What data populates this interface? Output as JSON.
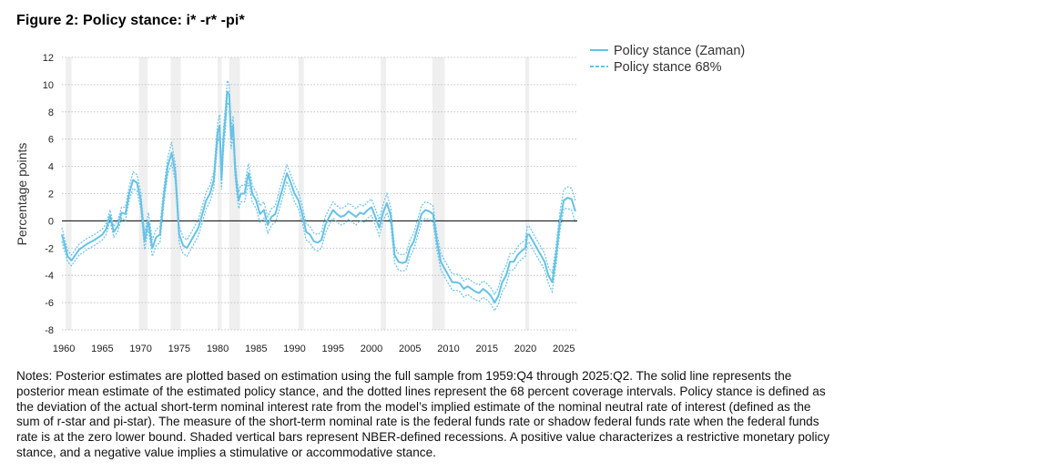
{
  "title": "Figure 2: Policy stance: i* -r* -pi*",
  "notes": "Notes: Posterior estimates are plotted based on estimation using the full sample from 1959:Q4 through 2025:Q2. The solid line represents the posterior mean estimate of the estimated policy stance, and the dotted lines represent the 68 percent coverage intervals. Policy stance is defined as the deviation of the actual short-term nominal interest rate from the model’s implied estimate of the nominal neutral rate of interest (defined as the sum of r-star and pi-star). The measure of the short-term nominal rate is the federal funds rate or shadow federal funds rate when the federal funds rate is at the zero lower bound. Shaded vertical bars represent NBER-defined recessions. A positive value characterizes a restrictive monetary policy stance, and a negative value implies a stimulative or accommodative stance.",
  "colors": {
    "line": "#66c2e6",
    "band": "#66c2e6",
    "recession": "#efefef",
    "zero_line": "#000000",
    "grid": "#b5b5b5"
  },
  "chart_data": {
    "type": "line",
    "title": "Figure 2: Policy stance: i* -r* -pi*",
    "ylabel": "Percentage points",
    "xlabel": "",
    "xlim": [
      1959.75,
      2026.75
    ],
    "ylim": [
      -8,
      12
    ],
    "x_ticks": [
      1960,
      1965,
      1970,
      1975,
      1980,
      1985,
      1990,
      1995,
      2000,
      2005,
      2010,
      2015,
      2020,
      2025
    ],
    "y_ticks": [
      -8,
      -6,
      -4,
      -2,
      0,
      2,
      4,
      6,
      8,
      10,
      12
    ],
    "grid": "horizontal dotted",
    "legend_position": "top-right, outside plot",
    "legend": [
      "Policy stance (Zaman)",
      "Policy stance 68%"
    ],
    "recessions": [
      [
        1960.25,
        1961.0
      ],
      [
        1969.75,
        1970.9
      ],
      [
        1973.9,
        1975.2
      ],
      [
        1980.0,
        1980.5
      ],
      [
        1981.5,
        1982.9
      ],
      [
        1990.5,
        1991.2
      ],
      [
        2001.2,
        2001.9
      ],
      [
        2007.9,
        2009.5
      ],
      [
        2020.0,
        2020.5
      ]
    ],
    "series": [
      {
        "name": "Policy stance (Zaman)",
        "style": "solid",
        "x": [
          1959.75,
          1960.5,
          1961.0,
          1961.5,
          1962.0,
          1963.0,
          1964.0,
          1965.0,
          1965.5,
          1966.0,
          1966.5,
          1967.0,
          1967.5,
          1968.0,
          1968.5,
          1969.0,
          1969.5,
          1970.0,
          1970.5,
          1971.0,
          1971.5,
          1972.0,
          1972.5,
          1973.0,
          1973.5,
          1974.0,
          1974.5,
          1975.0,
          1975.5,
          1976.0,
          1976.5,
          1977.0,
          1977.5,
          1978.0,
          1978.5,
          1979.0,
          1979.5,
          1980.0,
          1980.25,
          1980.5,
          1980.75,
          1981.0,
          1981.25,
          1981.5,
          1981.75,
          1982.0,
          1982.25,
          1982.5,
          1982.75,
          1983.0,
          1983.5,
          1984.0,
          1984.5,
          1985.0,
          1985.5,
          1986.0,
          1986.5,
          1987.0,
          1987.5,
          1988.0,
          1988.5,
          1989.0,
          1989.5,
          1990.0,
          1990.5,
          1991.0,
          1991.5,
          1992.0,
          1992.5,
          1993.0,
          1993.5,
          1994.0,
          1994.5,
          1995.0,
          1995.5,
          1996.0,
          1996.5,
          1997.0,
          1997.5,
          1998.0,
          1998.5,
          1999.0,
          1999.5,
          2000.0,
          2000.5,
          2001.0,
          2001.5,
          2002.0,
          2002.5,
          2003.0,
          2003.5,
          2004.0,
          2004.5,
          2005.0,
          2005.5,
          2006.0,
          2006.5,
          2007.0,
          2007.5,
          2008.0,
          2008.5,
          2009.0,
          2009.5,
          2010.0,
          2010.5,
          2011.0,
          2011.5,
          2012.0,
          2012.5,
          2013.0,
          2013.5,
          2014.0,
          2014.5,
          2015.0,
          2015.5,
          2016.0,
          2016.5,
          2017.0,
          2017.5,
          2018.0,
          2018.5,
          2019.0,
          2019.5,
          2020.0,
          2020.25,
          2020.5,
          2021.0,
          2021.5,
          2022.0,
          2022.5,
          2023.0,
          2023.5,
          2024.0,
          2024.5,
          2025.0,
          2025.5,
          2026.0,
          2026.5
        ],
        "y": [
          -1.0,
          -2.6,
          -2.9,
          -2.5,
          -2.1,
          -1.7,
          -1.4,
          -1.0,
          -0.6,
          0.4,
          -0.8,
          -0.4,
          0.6,
          0.5,
          2.0,
          3.0,
          2.8,
          1.5,
          -1.5,
          0.0,
          -2.0,
          -1.2,
          -1.0,
          1.8,
          4.0,
          5.0,
          3.5,
          -1.0,
          -1.8,
          -2.0,
          -1.5,
          -1.0,
          -0.5,
          0.5,
          1.5,
          2.0,
          3.0,
          6.5,
          7.0,
          3.0,
          6.0,
          7.5,
          9.5,
          9.3,
          6.0,
          7.0,
          4.0,
          2.5,
          1.5,
          2.0,
          2.0,
          3.5,
          2.0,
          1.5,
          0.5,
          0.8,
          -0.3,
          0.3,
          0.5,
          1.5,
          2.5,
          3.5,
          2.8,
          2.0,
          1.5,
          0.5,
          -0.8,
          -1.0,
          -1.5,
          -1.6,
          -1.4,
          -0.3,
          0.3,
          0.8,
          0.5,
          0.3,
          0.4,
          0.7,
          0.5,
          0.3,
          0.6,
          0.5,
          0.8,
          1.0,
          0.3,
          -0.5,
          0.6,
          1.3,
          0.4,
          -2.5,
          -3.0,
          -3.1,
          -3.0,
          -2.0,
          -1.5,
          -0.5,
          0.5,
          0.8,
          0.7,
          0.5,
          -1.5,
          -3.0,
          -3.5,
          -4.0,
          -4.5,
          -4.5,
          -4.6,
          -5.0,
          -4.8,
          -5.0,
          -5.2,
          -5.3,
          -5.0,
          -5.2,
          -5.5,
          -6.0,
          -5.5,
          -4.5,
          -4.0,
          -3.0,
          -3.0,
          -2.5,
          -2.2,
          -2.0,
          -1.0,
          -1.0,
          -1.5,
          -2.0,
          -2.5,
          -3.0,
          -4.0,
          -4.5,
          -2.5,
          0.0,
          1.5,
          1.7,
          1.6,
          0.7
        ]
      },
      {
        "name": "Policy stance 68%",
        "style": "dashed",
        "x": [
          1959.75,
          1960.5,
          1961.0,
          1961.5,
          1962.0,
          1963.0,
          1964.0,
          1965.0,
          1965.5,
          1966.0,
          1966.5,
          1967.0,
          1967.5,
          1968.0,
          1968.5,
          1969.0,
          1969.5,
          1970.0,
          1970.5,
          1971.0,
          1971.5,
          1972.0,
          1972.5,
          1973.0,
          1973.5,
          1974.0,
          1974.5,
          1975.0,
          1975.5,
          1976.0,
          1976.5,
          1977.0,
          1977.5,
          1978.0,
          1978.5,
          1979.0,
          1979.5,
          1980.0,
          1980.25,
          1980.5,
          1980.75,
          1981.0,
          1981.25,
          1981.5,
          1981.75,
          1982.0,
          1982.25,
          1982.5,
          1982.75,
          1983.0,
          1983.5,
          1984.0,
          1984.5,
          1985.0,
          1985.5,
          1986.0,
          1986.5,
          1987.0,
          1987.5,
          1988.0,
          1988.5,
          1989.0,
          1989.5,
          1990.0,
          1990.5,
          1991.0,
          1991.5,
          1992.0,
          1992.5,
          1993.0,
          1993.5,
          1994.0,
          1994.5,
          1995.0,
          1995.5,
          1996.0,
          1996.5,
          1997.0,
          1997.5,
          1998.0,
          1998.5,
          1999.0,
          1999.5,
          2000.0,
          2000.5,
          2001.0,
          2001.5,
          2002.0,
          2002.5,
          2003.0,
          2003.5,
          2004.0,
          2004.5,
          2005.0,
          2005.5,
          2006.0,
          2006.5,
          2007.0,
          2007.5,
          2008.0,
          2008.5,
          2009.0,
          2009.5,
          2010.0,
          2010.5,
          2011.0,
          2011.5,
          2012.0,
          2012.5,
          2013.0,
          2013.5,
          2014.0,
          2014.5,
          2015.0,
          2015.5,
          2016.0,
          2016.5,
          2017.0,
          2017.5,
          2018.0,
          2018.5,
          2019.0,
          2019.5,
          2020.0,
          2020.25,
          2020.5,
          2021.0,
          2021.5,
          2022.0,
          2022.5,
          2023.0,
          2023.5,
          2024.0,
          2024.5,
          2025.0,
          2025.5,
          2026.0,
          2026.5
        ],
        "upper": [
          -0.5,
          -2.2,
          -2.5,
          -2.1,
          -1.7,
          -1.3,
          -1.0,
          -0.6,
          -0.2,
          0.8,
          -0.4,
          0.0,
          1.0,
          1.0,
          2.5,
          3.6,
          3.4,
          2.1,
          -0.9,
          0.6,
          -1.4,
          -0.6,
          -0.4,
          2.4,
          4.6,
          5.8,
          4.1,
          -0.4,
          -1.2,
          -1.4,
          -0.9,
          -0.4,
          0.1,
          1.1,
          2.1,
          2.6,
          3.6,
          7.2,
          7.8,
          3.7,
          6.8,
          8.3,
          10.3,
          10.1,
          6.7,
          7.7,
          4.7,
          3.1,
          2.1,
          2.6,
          2.6,
          4.2,
          2.6,
          2.1,
          1.1,
          1.4,
          0.3,
          0.9,
          1.1,
          2.2,
          3.2,
          4.1,
          3.4,
          2.6,
          2.1,
          1.1,
          -0.2,
          -0.4,
          -0.9,
          -1.0,
          -0.8,
          0.3,
          0.9,
          1.4,
          1.1,
          0.9,
          1.0,
          1.3,
          1.1,
          0.9,
          1.2,
          1.1,
          1.4,
          1.6,
          0.9,
          0.1,
          1.2,
          2.0,
          1.0,
          -1.9,
          -2.4,
          -2.5,
          -2.4,
          -1.4,
          -0.9,
          0.1,
          1.1,
          1.4,
          1.3,
          1.1,
          -0.9,
          -2.4,
          -2.9,
          -3.4,
          -3.9,
          -3.9,
          -4.0,
          -4.4,
          -4.2,
          -4.4,
          -4.6,
          -4.7,
          -4.4,
          -4.6,
          -4.9,
          -5.4,
          -4.9,
          -3.8,
          -3.3,
          -2.4,
          -2.4,
          -1.9,
          -1.6,
          -1.4,
          -0.4,
          -0.4,
          -0.9,
          -1.4,
          -1.9,
          -2.4,
          -3.4,
          -3.8,
          -1.8,
          0.7,
          2.3,
          2.5,
          2.4,
          1.5
        ],
        "lower": [
          -1.5,
          -3.0,
          -3.3,
          -2.9,
          -2.5,
          -2.1,
          -1.8,
          -1.4,
          -1.0,
          0.0,
          -1.2,
          -0.8,
          0.2,
          0.0,
          1.5,
          2.4,
          2.2,
          0.9,
          -2.1,
          -0.6,
          -2.6,
          -1.8,
          -1.6,
          1.2,
          3.4,
          4.2,
          2.9,
          -1.6,
          -2.4,
          -2.6,
          -2.1,
          -1.6,
          -1.1,
          -0.1,
          0.9,
          1.4,
          2.4,
          5.8,
          6.2,
          2.3,
          5.2,
          6.7,
          8.7,
          8.5,
          5.3,
          6.3,
          3.3,
          1.9,
          0.9,
          1.4,
          1.4,
          2.8,
          1.4,
          0.9,
          -0.1,
          0.2,
          -0.9,
          -0.3,
          -0.1,
          0.8,
          1.8,
          2.9,
          2.2,
          1.4,
          0.9,
          -0.1,
          -1.4,
          -1.6,
          -2.1,
          -2.2,
          -2.0,
          -0.9,
          -0.3,
          0.2,
          -0.1,
          -0.3,
          -0.2,
          0.1,
          -0.1,
          -0.3,
          0.0,
          -0.1,
          0.2,
          0.4,
          -0.3,
          -1.1,
          0.0,
          0.6,
          -0.2,
          -3.1,
          -3.6,
          -3.7,
          -3.6,
          -2.6,
          -2.1,
          -1.1,
          -0.1,
          0.2,
          0.1,
          -0.1,
          -2.1,
          -3.6,
          -4.1,
          -4.6,
          -5.1,
          -5.1,
          -5.2,
          -5.6,
          -5.4,
          -5.6,
          -5.8,
          -5.9,
          -5.6,
          -5.8,
          -6.1,
          -6.6,
          -6.1,
          -5.2,
          -4.7,
          -3.6,
          -3.6,
          -3.1,
          -2.8,
          -2.6,
          -1.6,
          -1.6,
          -2.1,
          -2.6,
          -3.1,
          -3.6,
          -4.6,
          -5.2,
          -3.2,
          -0.7,
          0.9,
          0.9,
          0.8,
          -0.1
        ]
      }
    ]
  }
}
